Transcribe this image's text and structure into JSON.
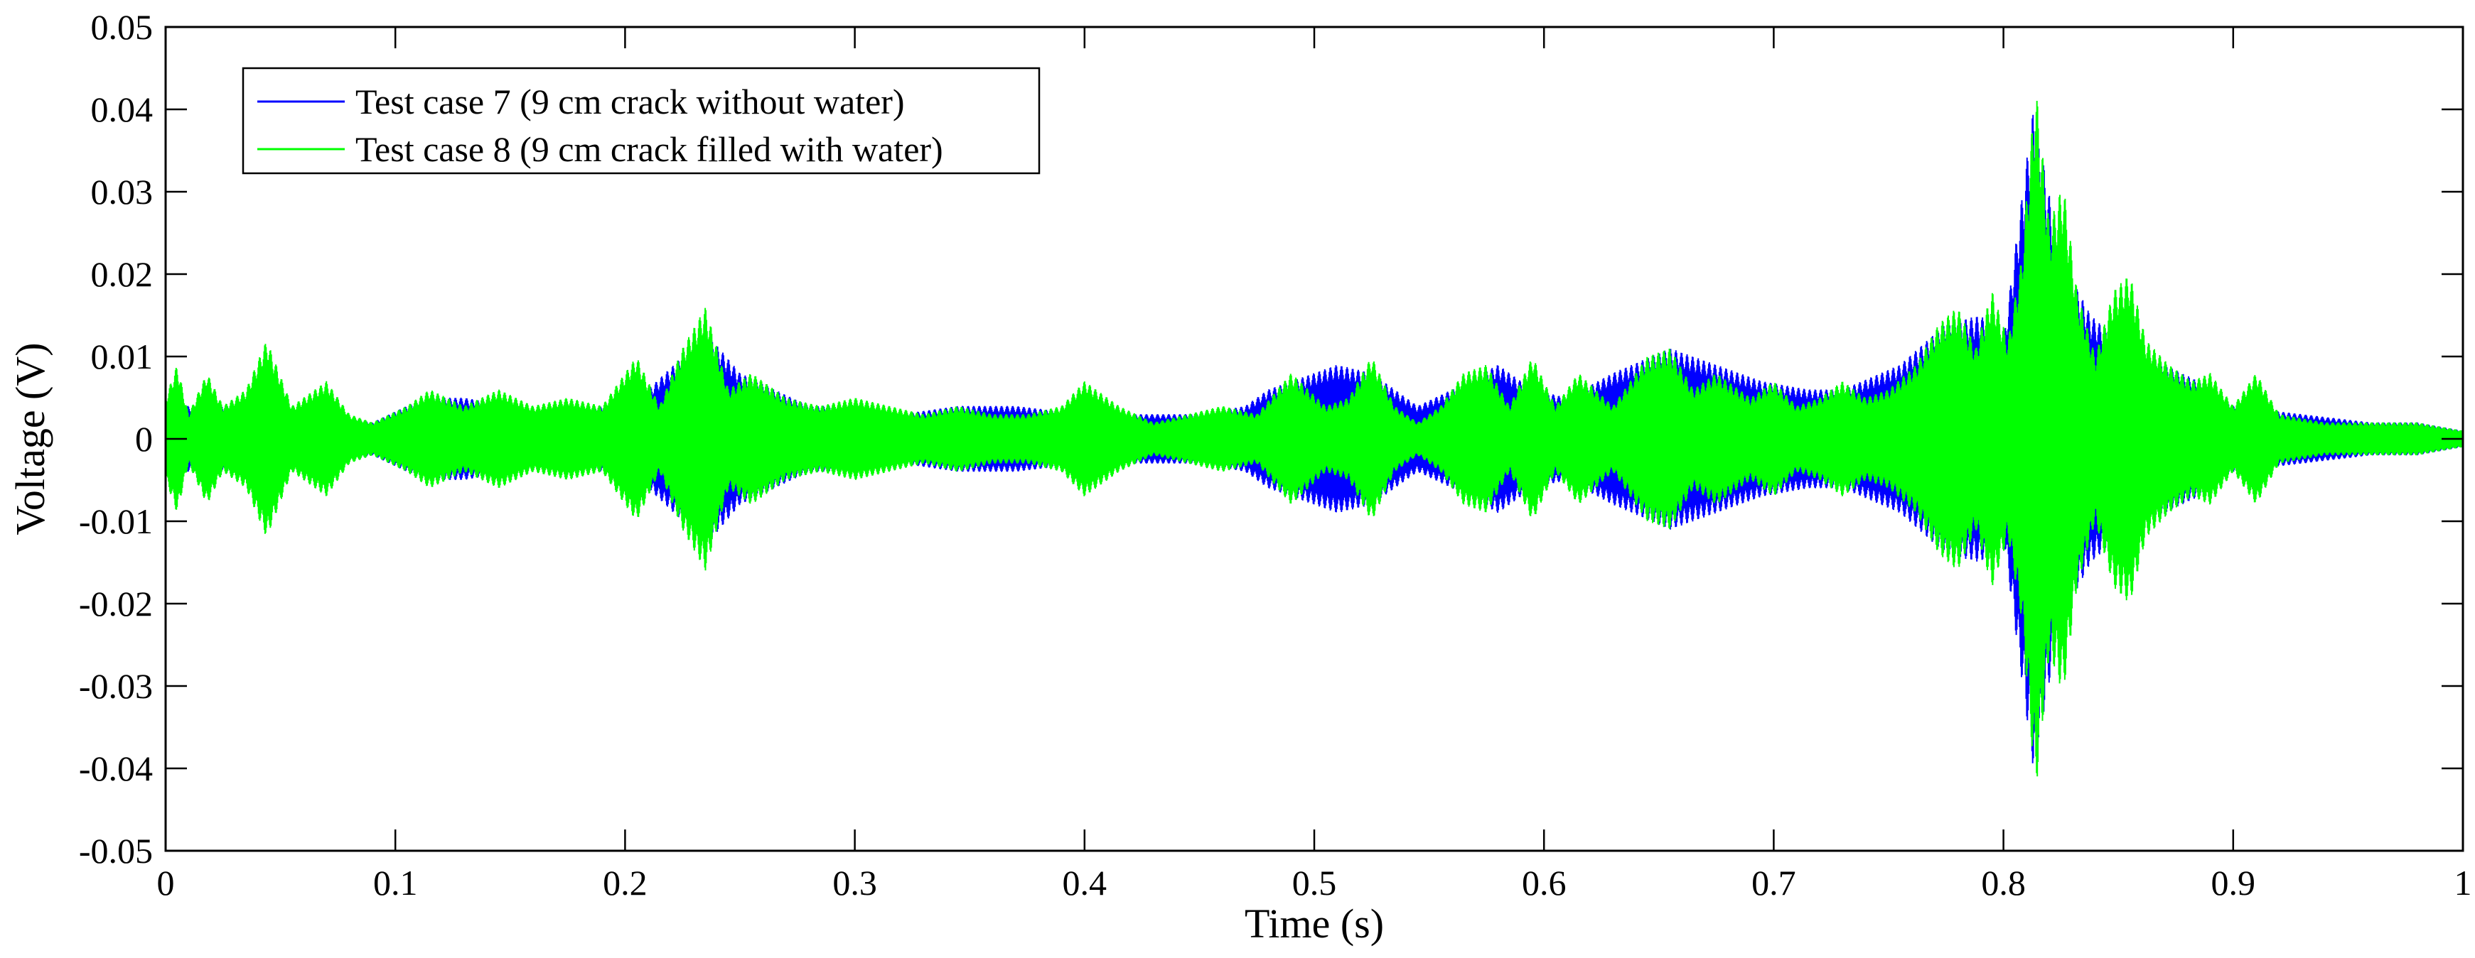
{
  "chart_data": {
    "type": "line",
    "title": "",
    "xlabel": "Time (s)",
    "ylabel": "Voltage (V)",
    "xlim": [
      0,
      1
    ],
    "ylim": [
      -0.05,
      0.05
    ],
    "grid": false,
    "legend_position": "top-left",
    "x_ticks": [
      0,
      0.1,
      0.2,
      0.3,
      0.4,
      0.5,
      0.6,
      0.7,
      0.8,
      0.9,
      1
    ],
    "x_tick_labels": [
      "0",
      "0.1",
      "0.2",
      "0.3",
      "0.4",
      "0.5",
      "0.6",
      "0.7",
      "0.8",
      "0.9",
      "1"
    ],
    "y_ticks": [
      -0.05,
      -0.04,
      -0.03,
      -0.02,
      -0.01,
      0,
      0.01,
      0.02,
      0.03,
      0.04,
      0.05
    ],
    "y_tick_labels": [
      "-0.05",
      "-0.04",
      "-0.03",
      "-0.02",
      "-0.01",
      "0",
      "0.01",
      "0.02",
      "0.03",
      "0.04",
      "0.05"
    ],
    "series": [
      {
        "name": "Test case 7 (9 cm crack without water)",
        "color": "#0000ff",
        "envelope": {
          "t": [
            0,
            0.02,
            0.044,
            0.07,
            0.09,
            0.105,
            0.115,
            0.13,
            0.15,
            0.175,
            0.19,
            0.21,
            0.225,
            0.238,
            0.25,
            0.265,
            0.28,
            0.3,
            0.32,
            0.345,
            0.37,
            0.4,
            0.42,
            0.45,
            0.47,
            0.48,
            0.5,
            0.51,
            0.525,
            0.545,
            0.56,
            0.58,
            0.595,
            0.61,
            0.63,
            0.655,
            0.675,
            0.695,
            0.715,
            0.73,
            0.755,
            0.775,
            0.79,
            0.8,
            0.813,
            0.825,
            0.838,
            0.85,
            0.87,
            0.885,
            0.9,
            0.93,
            0.96,
            0.98,
            1.0
          ],
          "amp": [
            0.004,
            0.004,
            0.004,
            0.003,
            0.002,
            0.004,
            0.005,
            0.005,
            0.004,
            0.003,
            0.004,
            0.006,
            0.01,
            0.012,
            0.008,
            0.006,
            0.004,
            0.004,
            0.003,
            0.004,
            0.004,
            0.003,
            0.003,
            0.003,
            0.004,
            0.006,
            0.008,
            0.009,
            0.008,
            0.004,
            0.006,
            0.009,
            0.006,
            0.005,
            0.008,
            0.011,
            0.009,
            0.007,
            0.006,
            0.006,
            0.009,
            0.014,
            0.015,
            0.012,
            0.04,
            0.022,
            0.015,
            0.012,
            0.009,
            0.007,
            0.004,
            0.003,
            0.002,
            0.002,
            0.001
          ]
        }
      },
      {
        "name": "Test case 8 (9 cm crack filled with water)",
        "color": "#00ff00",
        "envelope": {
          "t": [
            0,
            0.005,
            0.01,
            0.018,
            0.025,
            0.035,
            0.044,
            0.055,
            0.07,
            0.08,
            0.09,
            0.105,
            0.115,
            0.13,
            0.145,
            0.16,
            0.175,
            0.19,
            0.205,
            0.215,
            0.225,
            0.235,
            0.245,
            0.255,
            0.27,
            0.285,
            0.3,
            0.315,
            0.33,
            0.345,
            0.36,
            0.375,
            0.39,
            0.4,
            0.415,
            0.43,
            0.445,
            0.46,
            0.475,
            0.49,
            0.505,
            0.515,
            0.525,
            0.535,
            0.545,
            0.555,
            0.565,
            0.575,
            0.585,
            0.595,
            0.605,
            0.615,
            0.63,
            0.645,
            0.655,
            0.665,
            0.675,
            0.69,
            0.7,
            0.71,
            0.72,
            0.73,
            0.74,
            0.75,
            0.762,
            0.772,
            0.78,
            0.788,
            0.795,
            0.802,
            0.808,
            0.814,
            0.82,
            0.826,
            0.832,
            0.84,
            0.848,
            0.855,
            0.862,
            0.872,
            0.882,
            0.89,
            0.9,
            0.91,
            0.92,
            0.94,
            0.96,
            0.98,
            1.0
          ],
          "amp": [
            0.005,
            0.009,
            0.003,
            0.008,
            0.004,
            0.006,
            0.012,
            0.004,
            0.007,
            0.003,
            0.002,
            0.004,
            0.006,
            0.004,
            0.006,
            0.004,
            0.005,
            0.004,
            0.01,
            0.004,
            0.011,
            0.016,
            0.006,
            0.008,
            0.005,
            0.004,
            0.005,
            0.004,
            0.003,
            0.004,
            0.003,
            0.003,
            0.004,
            0.007,
            0.004,
            0.002,
            0.003,
            0.004,
            0.003,
            0.008,
            0.004,
            0.005,
            0.01,
            0.004,
            0.002,
            0.004,
            0.008,
            0.009,
            0.004,
            0.01,
            0.004,
            0.008,
            0.004,
            0.01,
            0.011,
            0.006,
            0.008,
            0.005,
            0.007,
            0.004,
            0.005,
            0.007,
            0.005,
            0.006,
            0.009,
            0.014,
            0.016,
            0.011,
            0.018,
            0.012,
            0.022,
            0.043,
            0.026,
            0.031,
            0.018,
            0.01,
            0.018,
            0.02,
            0.012,
            0.009,
            0.007,
            0.008,
            0.004,
            0.008,
            0.003,
            0.002,
            0.002,
            0.002,
            0.001
          ]
        }
      }
    ]
  }
}
